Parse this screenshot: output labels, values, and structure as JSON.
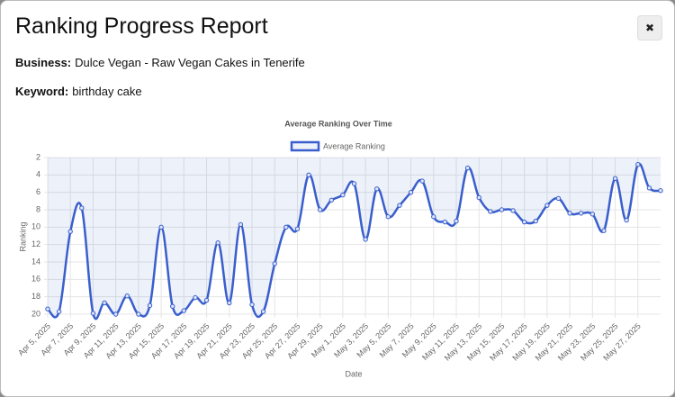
{
  "header": {
    "title": "Ranking Progress Report",
    "close": "✖"
  },
  "details": {
    "business_label": "Business:",
    "business": "Dulce Vegan - Raw Vegan Cakes in Tenerife",
    "keyword_label": "Keyword:",
    "keyword": "birthday cake"
  },
  "chart_data": {
    "type": "line",
    "title": "Average Ranking Over Time",
    "x_label": "Date",
    "y_label": "Ranking",
    "categories": [
      "Apr 5, 2025",
      null,
      "Apr 7, 2025",
      null,
      "Apr 9, 2025",
      null,
      "Apr 11, 2025",
      null,
      "Apr 13, 2025",
      null,
      "Apr 15, 2025",
      null,
      "Apr 17, 2025",
      null,
      "Apr 19, 2025",
      null,
      "Apr 21, 2025",
      null,
      "Apr 23, 2025",
      null,
      "Apr 25, 2025",
      null,
      "Apr 27, 2025",
      null,
      "Apr 29, 2025",
      null,
      "May 1, 2025",
      null,
      "May 3, 2025",
      null,
      "May 5, 2025",
      null,
      "May 7, 2025",
      null,
      "May 9, 2025",
      null,
      "May 11, 2025",
      null,
      "May 13, 2025",
      null,
      "May 15, 2025",
      null,
      "May 17, 2025",
      null,
      "May 19, 2025",
      null,
      "May 21, 2025",
      null,
      "May 23, 2025",
      null,
      "May 25, 2025",
      null,
      "May 27, 2025",
      null,
      null
    ],
    "series": [
      {
        "name": "Average Ranking",
        "color": "#3a5fcd",
        "fill_color": "rgba(58,95,205,0.09)",
        "values": [
          19.4,
          19.7,
          10.5,
          7.8,
          19.9,
          18.7,
          20,
          17.9,
          20,
          19,
          10,
          19.1,
          19.6,
          18.1,
          18.4,
          11.8,
          18.7,
          9.7,
          18.9,
          19.7,
          14.2,
          10,
          10.2,
          4,
          8,
          6.9,
          6.3,
          5,
          11.4,
          5.6,
          8.8,
          7.5,
          6,
          4.7,
          8.8,
          9.4,
          9.3,
          3.2,
          6.6,
          8.2,
          8,
          8.1,
          9.4,
          9.3,
          7.5,
          6.7,
          8.4,
          8.4,
          8.5,
          10.4,
          4.4,
          9.2,
          2.8,
          5.5,
          5.8
        ]
      }
    ],
    "ylim": [
      2,
      20
    ],
    "y_reversed": true,
    "yticks": [
      2,
      4,
      6,
      8,
      10,
      12,
      14,
      16,
      18,
      20
    ],
    "grid": true,
    "fill": true,
    "legend": "top"
  }
}
